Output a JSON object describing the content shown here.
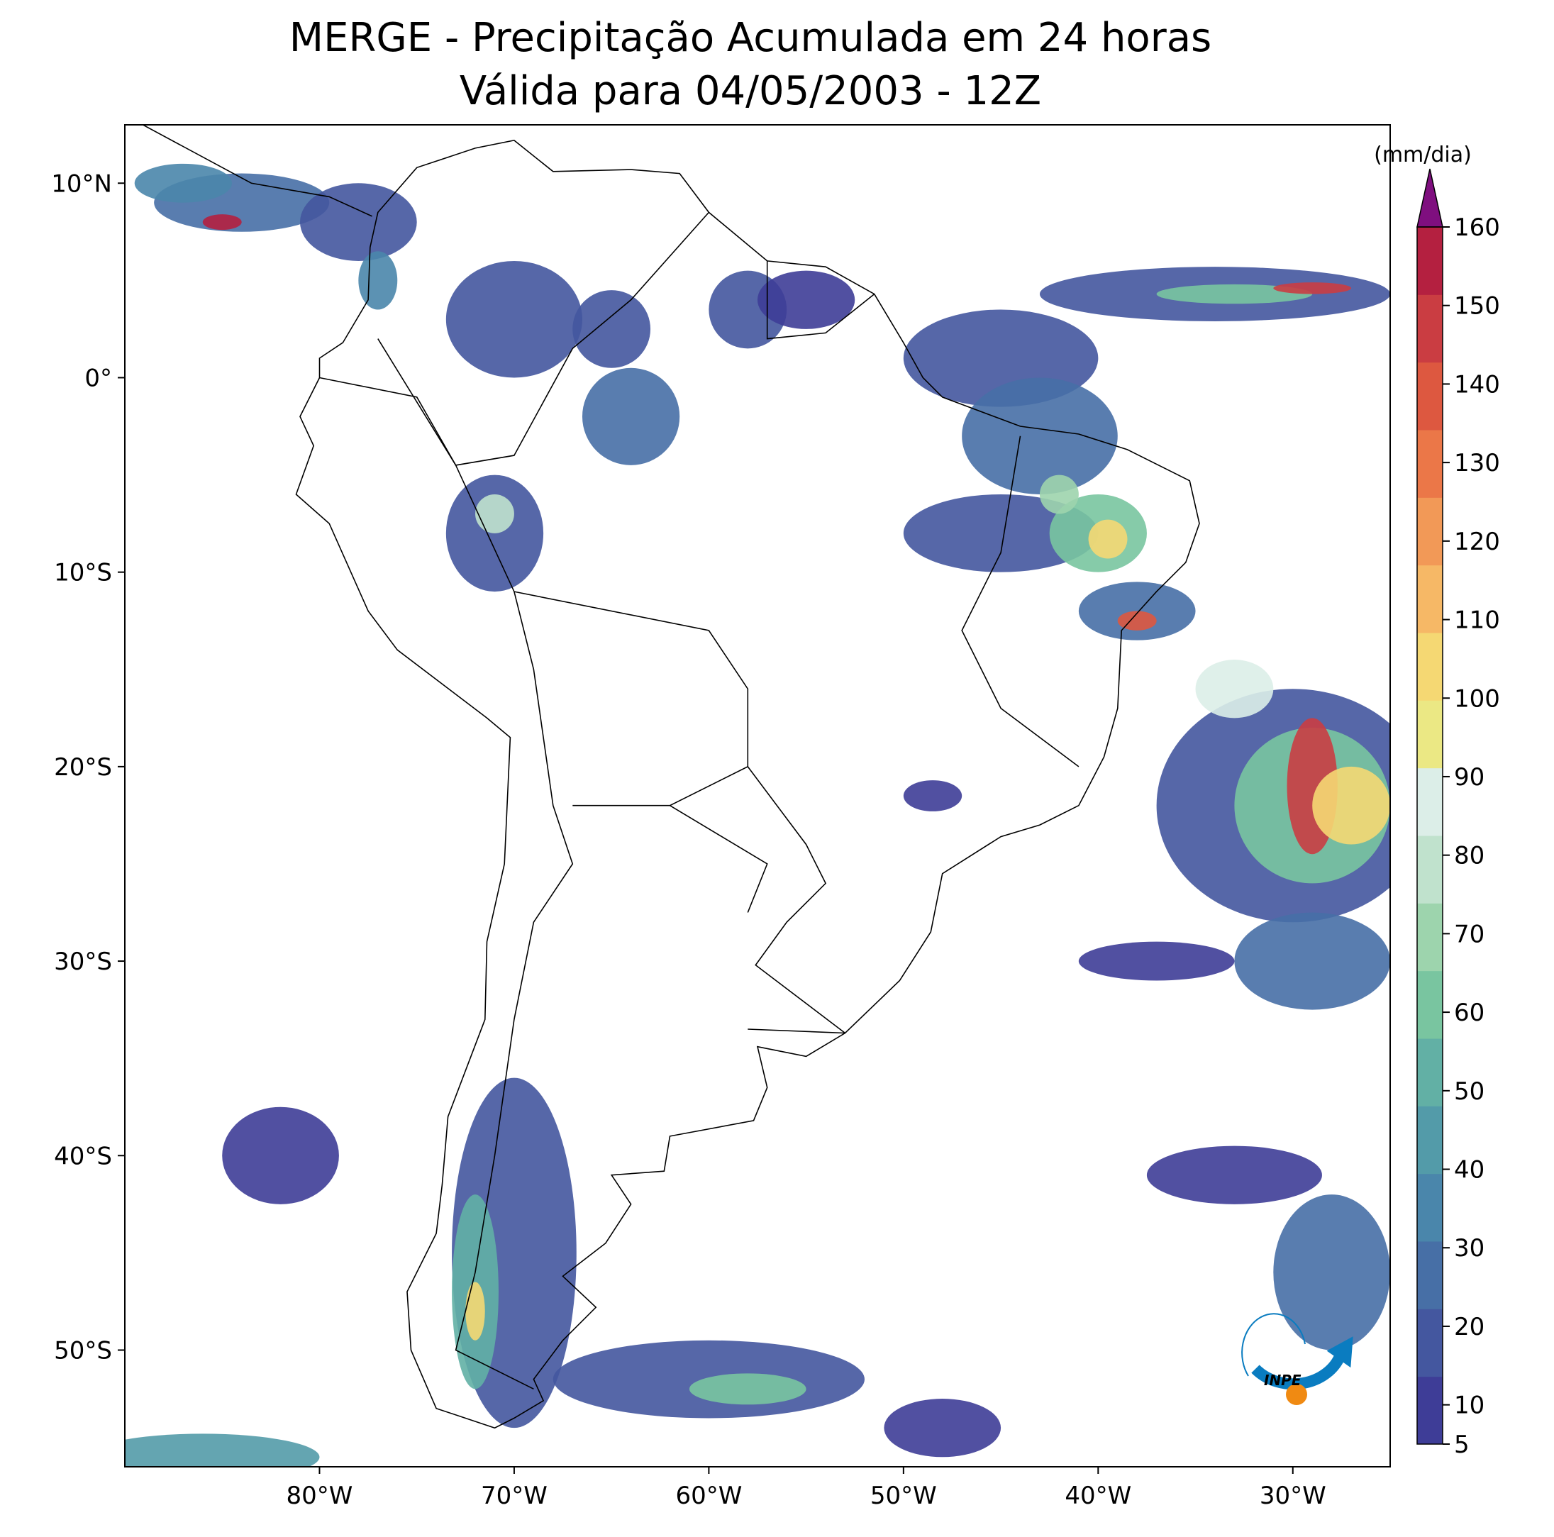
{
  "chart_data": {
    "type": "map",
    "title": "MERGE - Precipitação Acumulada em 24 horas",
    "subtitle": "Válida para 04/05/2003 - 12Z",
    "xlim": [
      -90,
      -25
    ],
    "ylim": [
      -56,
      13
    ],
    "xticks": [
      {
        "value": -80,
        "label": "80°W"
      },
      {
        "value": -70,
        "label": "70°W"
      },
      {
        "value": -60,
        "label": "60°W"
      },
      {
        "value": -50,
        "label": "50°W"
      },
      {
        "value": -40,
        "label": "40°W"
      },
      {
        "value": -30,
        "label": "30°W"
      }
    ],
    "yticks": [
      {
        "value": 10,
        "label": "10°N"
      },
      {
        "value": 0,
        "label": "0°"
      },
      {
        "value": -10,
        "label": "10°S"
      },
      {
        "value": -20,
        "label": "20°S"
      },
      {
        "value": -30,
        "label": "30°S"
      },
      {
        "value": -40,
        "label": "40°S"
      },
      {
        "value": -50,
        "label": "50°S"
      }
    ],
    "colorbar": {
      "label": "(mm/dia)",
      "range": [
        5,
        160
      ],
      "ticks": [
        5,
        10,
        20,
        30,
        40,
        50,
        60,
        70,
        80,
        90,
        100,
        110,
        120,
        130,
        140,
        150,
        160
      ],
      "colors": [
        "#3e3d97",
        "#44579f",
        "#476fa6",
        "#4a86ab",
        "#539ba9",
        "#62b0a5",
        "#79c5a0",
        "#9dd4ad",
        "#c0e2cd",
        "#dceee8",
        "#ebe884",
        "#f5d873",
        "#f6b866",
        "#f29957",
        "#eb7748",
        "#dd5840",
        "#ca3d42",
        "#b42040"
      ],
      "extend_color": "#7f0f7f"
    },
    "logo_text": "INPE"
  }
}
